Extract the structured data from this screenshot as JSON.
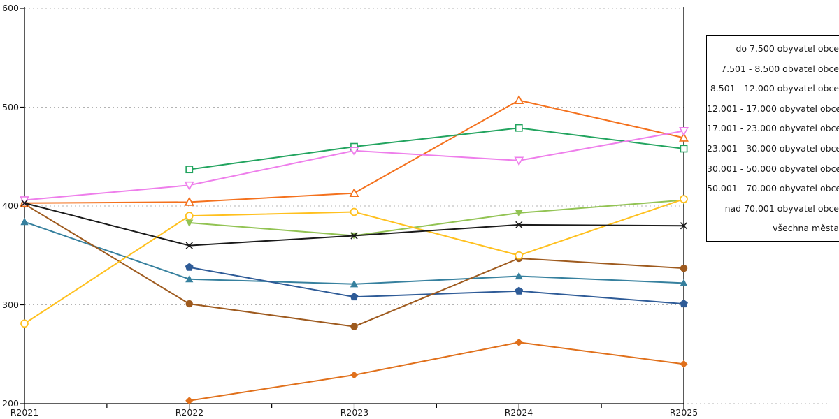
{
  "chart_data": {
    "type": "line",
    "title": "",
    "xlabel": "",
    "ylabel": "",
    "x_categories": [
      "R2021",
      "R2022",
      "R2023",
      "R2024",
      "R2025"
    ],
    "ylim": [
      200,
      600
    ],
    "yticks": [
      600,
      500,
      400,
      300,
      200
    ],
    "grid": "horizontal dotted",
    "legend_position": "right outside, text right-aligned, swatches cropped off right edge",
    "series": [
      {
        "name": "do 7.500 obyvatel obce",
        "color": "#36809E",
        "marker": "triangle-filled",
        "values": [
          384,
          326,
          321,
          329,
          322
        ]
      },
      {
        "name": "7.501 - 8.500 obvatel obce",
        "color": "#2E5B97",
        "marker": "pentagon-filled",
        "values": [
          null,
          338,
          308,
          314,
          301
        ]
      },
      {
        "name": "8.501 - 12.000 obyvatel obce",
        "color": "#9E5A1E",
        "marker": "circle-filled",
        "values": [
          402,
          301,
          278,
          347,
          337
        ]
      },
      {
        "name": "12.001 - 17.000 obyvatel obce",
        "color": "#F4711D",
        "marker": "triangle-open",
        "values": [
          403,
          404,
          413,
          507,
          469
        ]
      },
      {
        "name": "17.001 - 23.000 obyvatel obce",
        "color": "#22A45F",
        "marker": "square-open",
        "values": [
          null,
          437,
          460,
          479,
          458
        ]
      },
      {
        "name": "23.001 - 30.000 obyvatel obce",
        "color": "#EE7EEB",
        "marker": "triangle-down-open",
        "values": [
          406,
          421,
          456,
          446,
          476
        ]
      },
      {
        "name": "30.001 - 50.000 obyvatel obce",
        "color": "#92C353",
        "marker": "triangle-down-filled",
        "values": [
          null,
          383,
          370,
          393,
          406
        ]
      },
      {
        "name": "50.001 - 70.000 obyvatel obce",
        "color": "#FFC01E",
        "marker": "circle-open",
        "values": [
          281,
          390,
          394,
          350,
          407
        ]
      },
      {
        "name": "nad 70.001 obyvatel obce",
        "color": "#E0701B",
        "marker": "diamond-filled",
        "values": [
          null,
          203,
          229,
          262,
          240
        ]
      },
      {
        "name": "všechna města",
        "color": "#1A1A1A",
        "marker": "x",
        "values": [
          403,
          360,
          370,
          381,
          380
        ]
      }
    ]
  },
  "axes": {
    "y_tick_labels": [
      "600",
      "500",
      "400",
      "300",
      "200"
    ],
    "x_tick_labels": [
      "R2021",
      "R2022",
      "R2023",
      "R2024",
      "R2025"
    ]
  }
}
